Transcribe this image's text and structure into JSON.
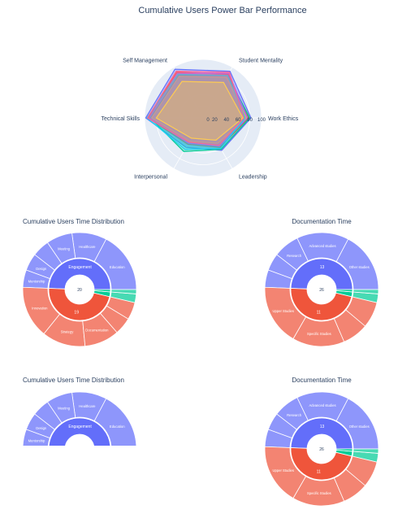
{
  "titles": {
    "main": "Cumulative Users Power Bar Performance",
    "sun_left_top": "Cumulative Users Time Distribution",
    "sun_right_top": "Documentation Time",
    "sun_left_bottom": "Cumulative Users Time Distribution",
    "sun_right_bottom": "Documentation Time"
  },
  "chart_data": [
    {
      "type": "radar",
      "axes": [
        "Work Ethics",
        "Student Mentality",
        "Self Management",
        "Technical Skills",
        "Interpersonal",
        "Leadership"
      ],
      "radial_ticks": [
        "0",
        "20",
        "40",
        "60",
        "80",
        "100"
      ],
      "rlim": [
        0,
        100
      ],
      "series": [
        {
          "color": "#636efa",
          "values": [
            82,
            92,
            96,
            98,
            58,
            64
          ]
        },
        {
          "color": "#ef553b",
          "values": [
            78,
            86,
            90,
            94,
            52,
            58
          ]
        },
        {
          "color": "#00cc96",
          "values": [
            80,
            84,
            84,
            90,
            66,
            62
          ]
        },
        {
          "color": "#ab63fa",
          "values": [
            76,
            88,
            88,
            92,
            50,
            56
          ]
        },
        {
          "color": "#ffa15a",
          "values": [
            74,
            80,
            82,
            88,
            46,
            50
          ]
        },
        {
          "color": "#19d3f3",
          "values": [
            72,
            84,
            86,
            96,
            62,
            60
          ]
        },
        {
          "color": "#ff6692",
          "values": [
            70,
            90,
            92,
            95,
            48,
            54
          ]
        },
        {
          "color": "#fecb52",
          "values": [
            68,
            70,
            72,
            80,
            40,
            44
          ]
        }
      ]
    },
    {
      "type": "sunburst",
      "title": "Cumulative Users Time Distribution",
      "center": "20",
      "inner": [
        {
          "label": "Engagement",
          "value": 40,
          "color": "#636efa"
        },
        {
          "label": "19",
          "value": 38,
          "color": "#ef553b"
        },
        {
          "label": "",
          "value": 2,
          "color": "#00cc96"
        },
        {
          "label": "",
          "value": 1,
          "color": "#00cc96"
        }
      ],
      "outer": [
        {
          "label": "Education",
          "parent": 0,
          "value": 14
        },
        {
          "label": "Healthcare",
          "parent": 0,
          "value": 8
        },
        {
          "label": "Meeting",
          "parent": 0,
          "value": 6
        },
        {
          "label": "",
          "parent": 0,
          "value": 4
        },
        {
          "label": "Design",
          "parent": 0,
          "value": 4
        },
        {
          "label": "Mentorship",
          "parent": 0,
          "value": 4
        },
        {
          "label": "Innovation",
          "parent": 1,
          "value": 12
        },
        {
          "label": "Strategy",
          "parent": 1,
          "value": 10
        },
        {
          "label": "Documentation",
          "parent": 1,
          "value": 8
        },
        {
          "label": "",
          "parent": 1,
          "value": 4
        },
        {
          "label": "",
          "parent": 1,
          "value": 4
        },
        {
          "label": "",
          "parent": 2,
          "value": 2
        },
        {
          "label": "",
          "parent": 3,
          "value": 1
        }
      ]
    },
    {
      "type": "sunburst",
      "title": "Documentation Time",
      "center": "26",
      "inner": [
        {
          "label": "13",
          "value": 40,
          "color": "#636efa"
        },
        {
          "label": "11",
          "value": 38,
          "color": "#ef553b"
        },
        {
          "label": "",
          "value": 2,
          "color": "#00cc96"
        },
        {
          "label": "",
          "value": 1,
          "color": "#00cc96"
        }
      ],
      "outer": [
        {
          "label": "Other studies",
          "parent": 0,
          "value": 14
        },
        {
          "label": "Advanced studies",
          "parent": 0,
          "value": 12
        },
        {
          "label": "Research",
          "parent": 0,
          "value": 6
        },
        {
          "label": "",
          "parent": 0,
          "value": 4
        },
        {
          "label": "",
          "parent": 0,
          "value": 4
        },
        {
          "label": "Upper Studies",
          "parent": 1,
          "value": 14
        },
        {
          "label": "Specific Studies",
          "parent": 1,
          "value": 12
        },
        {
          "label": "",
          "parent": 1,
          "value": 6
        },
        {
          "label": "",
          "parent": 1,
          "value": 6
        },
        {
          "label": "",
          "parent": 2,
          "value": 2
        },
        {
          "label": "",
          "parent": 3,
          "value": 1
        }
      ]
    }
  ]
}
